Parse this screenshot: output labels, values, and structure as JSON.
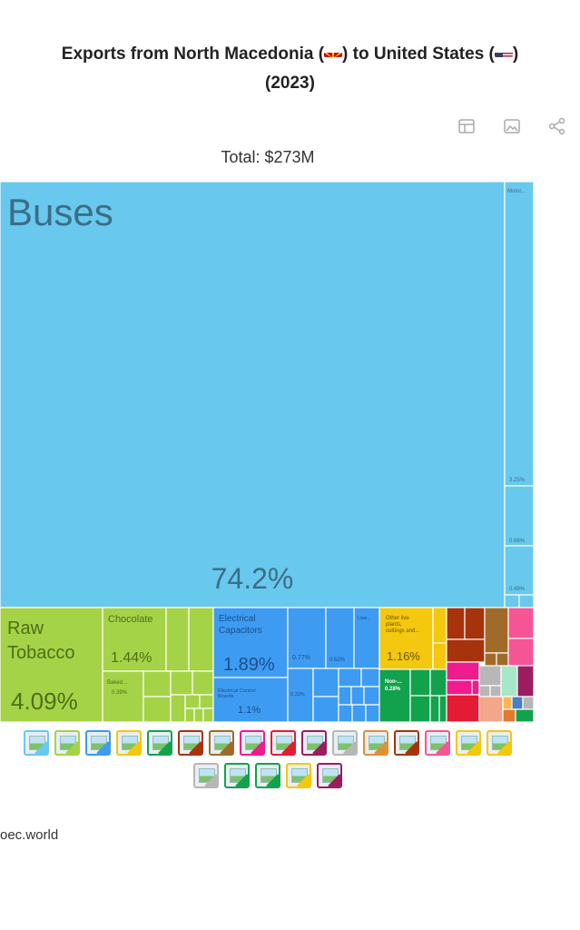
{
  "title": {
    "line1_a": "Exports from North Macedonia (",
    "line1_b": ") to United States (",
    "line1_c": ")",
    "line2": "(2023)"
  },
  "toolbar": [
    "table-icon",
    "image-icon",
    "share-icon"
  ],
  "total_label": "Total: $273M",
  "source": "oec.world",
  "colors": {
    "transportation": "#69c8ee",
    "vegetable": "#a5d347",
    "machines": "#3d9bf2",
    "animal_veg": "#f3c80e",
    "chemicals": "#ef1c8e",
    "textiles": "#a6330c",
    "metals": "#a06b29",
    "instruments": "#9b1d5f",
    "misc": "#f65595",
    "plastics": "#e31b35",
    "stone": "#12a24d",
    "minerals": "#b7b7b7"
  },
  "chart_data": {
    "type": "treemap",
    "title": "Exports from North Macedonia to United States (2023)",
    "total": "$273M",
    "tiles": [
      {
        "name": "Buses",
        "share": 74.2,
        "label": "74.2%"
      },
      {
        "name": "Motor...",
        "share": 3.25,
        "label": "3.25%"
      },
      {
        "name": "",
        "share": 0.66,
        "label": "0.66%"
      },
      {
        "name": "",
        "share": 0.49,
        "label": "0.49%"
      },
      {
        "name": "Raw Tobacco",
        "share": 4.09,
        "label": "4.09%"
      },
      {
        "name": "Chocolate",
        "share": 1.44,
        "label": "1.44%"
      },
      {
        "name": "Baked...",
        "share": 0.39,
        "label": "0.39%"
      },
      {
        "name": "Electrical Capacitors",
        "share": 1.89,
        "label": "1.89%"
      },
      {
        "name": "Electrical Control Boards",
        "share": 1.1,
        "label": "1.1%"
      },
      {
        "name": "",
        "share": 0.77,
        "label": "0.77%"
      },
      {
        "name": "",
        "share": 0.62,
        "label": "0.62%"
      },
      {
        "name": "",
        "share": 0.33,
        "label": "0.33%"
      },
      {
        "name": "Low...",
        "share": null,
        "label": ""
      },
      {
        "name": "Other live plants, cuttings and...",
        "share": 1.16,
        "label": "1.16%"
      },
      {
        "name": "Non-...",
        "share": 0.28,
        "label": "0.28%"
      }
    ]
  },
  "legend": {
    "row1": [
      "transportation",
      "vegetable",
      "machines",
      "animal_veg",
      "stone",
      "textiles",
      "metals",
      "chemicals",
      "plastics",
      "instruments",
      "minerals",
      "food",
      "textiles",
      "misc",
      "animal_veg",
      "animal_veg"
    ],
    "row2": [
      "minerals",
      "stone",
      "stone",
      "animal_veg",
      "instruments"
    ]
  }
}
